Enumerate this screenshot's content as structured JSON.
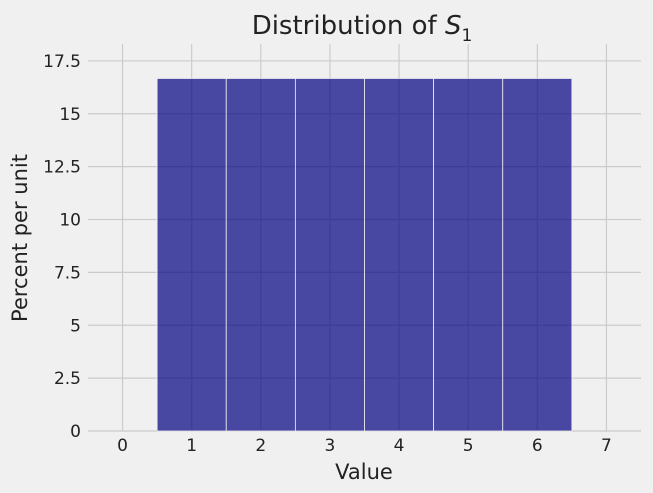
{
  "chart_data": {
    "type": "bar",
    "title": "Distribution of ",
    "title_subscript_base": "S",
    "title_subscript": "1",
    "xlabel": "Value",
    "ylabel": "Percent per unit",
    "bin_edges": [
      0.5,
      1.5,
      2.5,
      3.5,
      4.5,
      5.5,
      6.5
    ],
    "values": [
      16.67,
      16.67,
      16.67,
      16.67,
      16.67,
      16.67
    ],
    "xlim": [
      -0.5,
      7.5
    ],
    "ylim": [
      0,
      18.3
    ],
    "xticks": [
      0,
      1,
      2,
      3,
      4,
      5,
      6,
      7
    ],
    "xtick_labels": [
      "0",
      "1",
      "2",
      "3",
      "4",
      "5",
      "6",
      "7"
    ],
    "yticks": [
      0,
      2.5,
      5,
      7.5,
      10,
      12.5,
      15,
      17.5
    ],
    "ytick_labels": [
      "0",
      "2.5",
      "5",
      "7.5",
      "10",
      "12.5",
      "15",
      "17.5"
    ],
    "grid": true,
    "bar_color": "#000080",
    "bar_opacity": 0.7,
    "background_color": "#f0f0f0"
  }
}
